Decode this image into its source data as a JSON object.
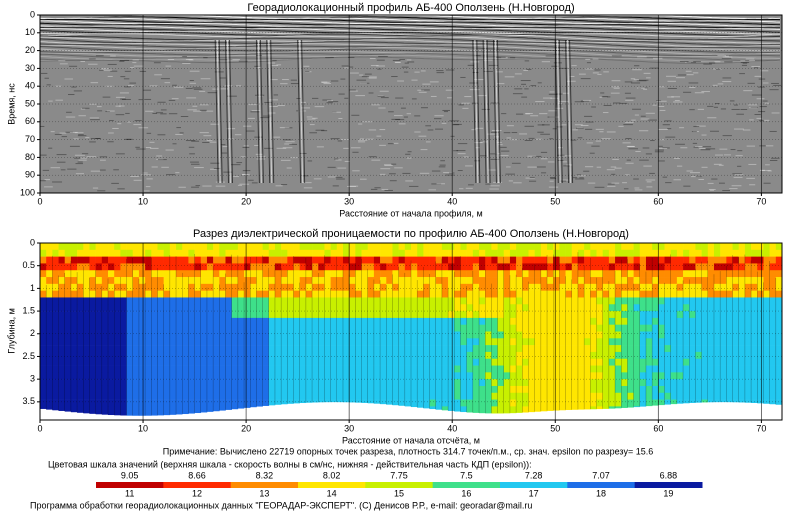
{
  "chart_data": [
    {
      "type": "radargram",
      "title": "Георадиолокационный профиль  АБ-400 Оползень (Н.Новгород)",
      "x_label": "Расстояние от начала профиля, м",
      "y_label": "Время, нс",
      "xlim": [
        0,
        72
      ],
      "xticks": [
        0,
        10,
        20,
        30,
        40,
        50,
        60,
        70
      ],
      "ylim": [
        0,
        100
      ],
      "yticks": [
        0,
        10,
        20,
        30,
        40,
        50,
        60,
        70,
        80,
        90,
        100
      ],
      "y_inverted": true,
      "grid": true
    },
    {
      "type": "section",
      "title": "Разрез диэлектрической проницаемости по профилю АБ-400 Оползень (Н.Новгород)",
      "x_label": "Расстояние от начала отсчёта, м",
      "y_label": "Глубина, м",
      "xlim": [
        0,
        72
      ],
      "xticks": [
        0,
        10,
        20,
        30,
        40,
        50,
        60,
        70
      ],
      "ylim": [
        0,
        3.9
      ],
      "yticks": [
        0,
        0.5,
        1,
        1.5,
        2,
        2.5,
        3,
        3.5
      ],
      "y_inverted": true,
      "grid": true
    }
  ],
  "note": "Примечание: Вычислено 22719 опорных точек разреза, плотность 314.7 точек/п.м., ср. знач. epsilon по разрезу= 15.6",
  "colorbar": {
    "title": "Цветовая шкала значений (верхняя шкала - скорость волны в см/нс, нижняя - действительная часть КДП (epsilon)):",
    "velocity_labels": [
      "9.05",
      "8.66",
      "8.32",
      "8.02",
      "7.75",
      "7.5",
      "7.28",
      "7.07",
      "6.88"
    ],
    "epsilon_labels": [
      "11",
      "12",
      "13",
      "14",
      "15",
      "16",
      "17",
      "18",
      "19"
    ],
    "colors": [
      "#c00000",
      "#ff2a00",
      "#ff8c00",
      "#ffe600",
      "#c8f000",
      "#3ee08a",
      "#22c8f0",
      "#1e6ee8",
      "#0a1aa0"
    ]
  },
  "footer": "Программа обработки георадиолокационных данных \"ГЕОРАДАР-ЭКСПЕРТ\". (С) Денисов Р.Р., e-mail: georadar@mail.ru"
}
